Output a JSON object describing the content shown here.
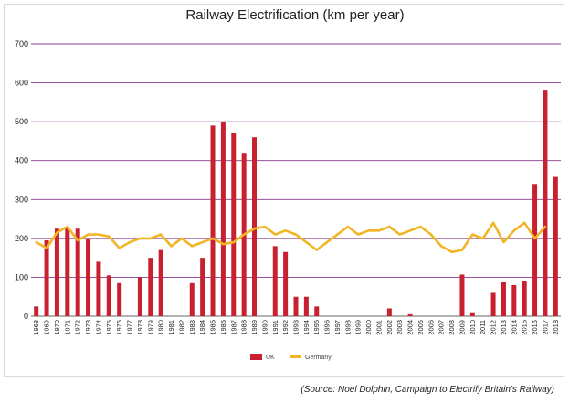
{
  "chart_data": {
    "type": "bar+line",
    "title": "Railway Electrification (km per year)",
    "xlabel": "",
    "ylabel": "",
    "ylim": [
      0,
      700
    ],
    "yticks": [
      0,
      100,
      200,
      300,
      400,
      500,
      600,
      700
    ],
    "categories": [
      "1968",
      "1969",
      "1970",
      "1971",
      "1972",
      "1973",
      "1974",
      "1975",
      "1976",
      "1977",
      "1978",
      "1979",
      "1980",
      "1981",
      "1982",
      "1983",
      "1984",
      "1985",
      "1986",
      "1987",
      "1988",
      "1989",
      "1990",
      "1991",
      "1992",
      "1993",
      "1994",
      "1995",
      "1996",
      "1997",
      "1998",
      "1999",
      "2000",
      "2001",
      "2002",
      "2003",
      "2004",
      "2005",
      "2006",
      "2007",
      "2008",
      "2009",
      "2010",
      "2011",
      "2012",
      "2013",
      "2014",
      "2015",
      "2016",
      "2017",
      "2018"
    ],
    "series": [
      {
        "name": "UK",
        "kind": "bar",
        "color": "#c8202f",
        "values": [
          25,
          195,
          225,
          225,
          225,
          200,
          140,
          105,
          85,
          0,
          100,
          150,
          170,
          0,
          0,
          85,
          150,
          490,
          500,
          470,
          420,
          460,
          0,
          180,
          165,
          50,
          50,
          25,
          0,
          0,
          0,
          0,
          0,
          0,
          20,
          0,
          5,
          0,
          0,
          0,
          0,
          107,
          10,
          0,
          60,
          87,
          80,
          90,
          340,
          580,
          358
        ]
      },
      {
        "name": "Germany",
        "kind": "line",
        "color": "#f2b525",
        "values": [
          190,
          175,
          215,
          230,
          195,
          210,
          210,
          205,
          175,
          190,
          200,
          200,
          210,
          180,
          200,
          180,
          190,
          200,
          185,
          190,
          210,
          225,
          230,
          210,
          220,
          210,
          190,
          170,
          190,
          210,
          230,
          210,
          220,
          220,
          230,
          210,
          220,
          230,
          210,
          180,
          165,
          170,
          210,
          200,
          240,
          190,
          220,
          240,
          200,
          230,
          null
        ]
      }
    ],
    "grid": true,
    "legend": "bottom-center",
    "source": "(Source: Noel Dolphin, Campaign to Electrify Britain's Railway)"
  }
}
